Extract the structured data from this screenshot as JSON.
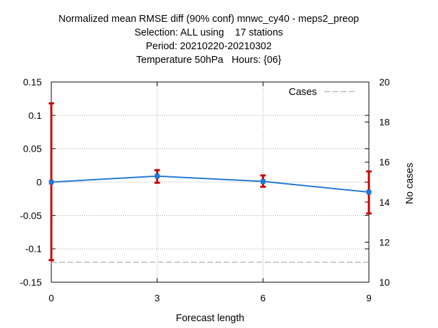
{
  "chart_data": {
    "type": "line",
    "title_lines": [
      "Normalized mean RMSE diff (90% conf) mnwc_cy40 - meps2_preop",
      "Selection: ALL using    17 stations",
      "Period: 20210220-20210302",
      "Temperature 50hPa   Hours: {06}"
    ],
    "xlabel": "Forecast length",
    "ylabel": "",
    "y2label": "No cases",
    "xlim": [
      0,
      9
    ],
    "ylim": [
      -0.15,
      0.15
    ],
    "y2lim": [
      10,
      20
    ],
    "x_ticks": [
      "0",
      "3",
      "6",
      "9"
    ],
    "y_ticks": [
      "0.15",
      "0.1",
      "0.05",
      "0",
      "-0.05",
      "-0.1",
      "-0.15"
    ],
    "y2_ticks": [
      "20",
      "18",
      "16",
      "14",
      "12",
      "10"
    ],
    "grid": true,
    "legend": {
      "entry": "Cases",
      "placement": "top-right"
    },
    "series": [
      {
        "x": [
          0,
          3,
          6,
          9
        ],
        "values": [
          0.0,
          0.009,
          0.001,
          -0.015
        ],
        "err_low": [
          -0.117,
          -0.001,
          -0.007,
          -0.047
        ],
        "err_high": [
          0.118,
          0.018,
          0.01,
          0.016
        ],
        "color": "#1f77d4",
        "errcolor": "#cc0000"
      },
      {
        "name": "Cases",
        "axis": "y2",
        "x": [
          0,
          3,
          6,
          9
        ],
        "values": [
          11,
          11,
          11,
          11
        ],
        "color": "#999999",
        "dash": true
      }
    ]
  }
}
